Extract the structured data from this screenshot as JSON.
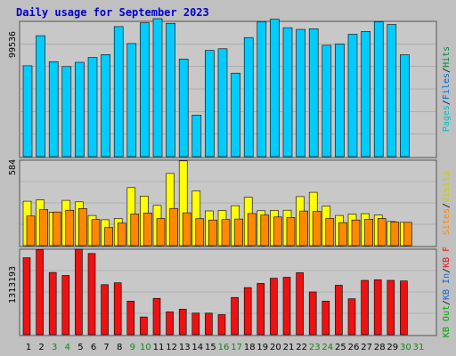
{
  "title": "Daily usage for September 2023",
  "colors": {
    "background": "#c0c0c0",
    "title": "#0000cc",
    "panel_fill": "#c8c8c8",
    "grid": "#9a9a9a",
    "hits": "#00ccff",
    "files": "#0066cc",
    "pages": "#00c0c0",
    "visits": "#ffff00",
    "sites": "#ff8800",
    "kb": "#ee1111",
    "kb_in": "#1166cc",
    "kb_out": "#00a000",
    "weekend": "#118811",
    "weekday": "#000000"
  },
  "chart_data": [
    {
      "type": "bar",
      "panel": "top",
      "ytick": "99536",
      "legend": [
        {
          "label": "Hits",
          "color": "#008040"
        },
        {
          "label": "/",
          "color": "#000000"
        },
        {
          "label": "Files",
          "color": "#0066cc"
        },
        {
          "label": "/",
          "color": "#000000"
        },
        {
          "label": "Pages",
          "color": "#00c0c0"
        }
      ],
      "ymax": 113000,
      "series": [
        {
          "name": "Hits",
          "values": [
            75900,
            101000,
            79300,
            75200,
            78800,
            82800,
            85300,
            108600,
            94500,
            111700,
            115200,
            111400,
            81500,
            34700,
            88700,
            90100,
            69700,
            99500,
            112800,
            114700,
            107700,
            106300,
            106800,
            93000,
            94000,
            102200,
            104500,
            112600,
            110300,
            85100
          ]
        }
      ]
    },
    {
      "type": "bar",
      "panel": "middle",
      "ytick": "584",
      "legend": [
        {
          "label": "Visits",
          "color": "#cccc00"
        },
        {
          "label": "/",
          "color": "#000000"
        },
        {
          "label": "Sites",
          "color": "#ff8800"
        }
      ],
      "ymax": 620,
      "series": [
        {
          "name": "Visits",
          "values": [
            322,
            331,
            243,
            329,
            318,
            219,
            188,
            197,
            421,
            360,
            292,
            524,
            615,
            397,
            252,
            255,
            290,
            351,
            253,
            256,
            257,
            356,
            387,
            286,
            219,
            228,
            232,
            222,
            175,
            169
          ]
        },
        {
          "name": "Sites",
          "values": [
            215,
            262,
            244,
            257,
            269,
            189,
            131,
            164,
            230,
            237,
            197,
            270,
            238,
            196,
            186,
            189,
            193,
            233,
            222,
            208,
            204,
            251,
            248,
            197,
            167,
            186,
            192,
            197,
            171,
            169
          ]
        }
      ]
    },
    {
      "type": "bar",
      "panel": "bottom",
      "ytick": "1313193",
      "legend": [
        {
          "label": "KB F",
          "color": "#ee1111"
        },
        {
          "label": "/",
          "color": "#000000"
        },
        {
          "label": "KB In",
          "color": "#1166cc"
        },
        {
          "label": "/",
          "color": "#000000"
        },
        {
          "label": "KB Out",
          "color": "#00a000"
        }
      ],
      "ymax": 1400000,
      "series": [
        {
          "name": "KB F",
          "values": [
            1260000,
            1390000,
            1020000,
            970000,
            1400000,
            1330000,
            820000,
            850000,
            550000,
            290000,
            595000,
            373000,
            418000,
            353000,
            353000,
            328000,
            610000,
            772000,
            840000,
            925000,
            940000,
            1015000,
            700000,
            550000,
            810000,
            587000,
            890000,
            900000,
            890000,
            880000
          ]
        }
      ]
    }
  ],
  "x_axis": [
    {
      "label": "1",
      "weekend": false
    },
    {
      "label": "2",
      "weekend": false
    },
    {
      "label": "3",
      "weekend": true
    },
    {
      "label": "4",
      "weekend": true
    },
    {
      "label": "5",
      "weekend": false
    },
    {
      "label": "6",
      "weekend": false
    },
    {
      "label": "7",
      "weekend": false
    },
    {
      "label": "8",
      "weekend": false
    },
    {
      "label": "9",
      "weekend": true
    },
    {
      "label": "10",
      "weekend": true
    },
    {
      "label": "11",
      "weekend": false
    },
    {
      "label": "12",
      "weekend": false
    },
    {
      "label": "13",
      "weekend": false
    },
    {
      "label": "14",
      "weekend": false
    },
    {
      "label": "15",
      "weekend": false
    },
    {
      "label": "16",
      "weekend": true
    },
    {
      "label": "17",
      "weekend": true
    },
    {
      "label": "18",
      "weekend": false
    },
    {
      "label": "19",
      "weekend": false
    },
    {
      "label": "20",
      "weekend": false
    },
    {
      "label": "21",
      "weekend": false
    },
    {
      "label": "22",
      "weekend": false
    },
    {
      "label": "23",
      "weekend": true
    },
    {
      "label": "24",
      "weekend": true
    },
    {
      "label": "25",
      "weekend": false
    },
    {
      "label": "26",
      "weekend": false
    },
    {
      "label": "27",
      "weekend": false
    },
    {
      "label": "28",
      "weekend": false
    },
    {
      "label": "29",
      "weekend": false
    },
    {
      "label": "30",
      "weekend": true
    },
    {
      "label": "31",
      "weekend": true
    }
  ]
}
